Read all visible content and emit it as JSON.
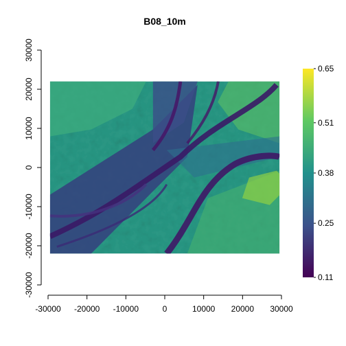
{
  "chart_data": {
    "type": "heatmap",
    "title": "B08_10m",
    "xlabel": "",
    "ylabel": "",
    "xlim": [
      -30000,
      30000
    ],
    "ylim": [
      -30000,
      30000
    ],
    "raster_extent": {
      "xmin": -29500,
      "xmax": 29500,
      "ymin": -22000,
      "ymax": 22000
    },
    "x_ticks": [
      -30000,
      -20000,
      -10000,
      0,
      10000,
      20000,
      30000
    ],
    "y_ticks": [
      -30000,
      -20000,
      -10000,
      0,
      10000,
      20000,
      30000
    ],
    "legend": {
      "placement": "right",
      "min": 0.11,
      "max": 0.65,
      "ticks": [
        0.65,
        0.51,
        0.38,
        0.25,
        0.11
      ],
      "colormap": "viridis",
      "colors": [
        "#440154",
        "#3b528b",
        "#21918c",
        "#5ec962",
        "#fde725"
      ]
    }
  }
}
